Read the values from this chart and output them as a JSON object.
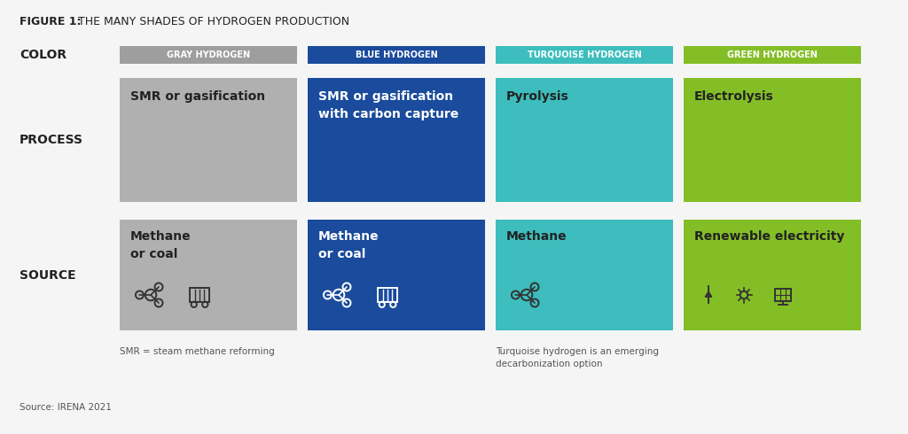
{
  "title_bold": "FIGURE 1:",
  "title_rest": " THE MANY SHADES OF HYDROGEN PRODUCTION",
  "background_color": "#f5f5f5",
  "columns": [
    {
      "label": "GRAY HYDROGEN",
      "label_bg": "#9e9e9e",
      "label_text_color": "#ffffff",
      "box_color": "#b0b0b0",
      "process_text": "SMR or gasification",
      "process_text_color": "#222222",
      "source_text": "Methane\nor coal",
      "source_text_color": "#222222",
      "icons": "methane+coal",
      "icon_color": "#333333"
    },
    {
      "label": "BLUE HYDROGEN",
      "label_bg": "#1a4b9c",
      "label_text_color": "#ffffff",
      "box_color": "#1a4b9c",
      "process_text": "SMR or gasification\nwith carbon capture",
      "process_text_color": "#ffffff",
      "source_text": "Methane\nor coal",
      "source_text_color": "#ffffff",
      "icons": "methane+coal",
      "icon_color": "#ffffff"
    },
    {
      "label": "TURQUOISE HYDROGEN",
      "label_bg": "#3dbdbd",
      "label_text_color": "#ffffff",
      "box_color": "#3dbdbd",
      "process_text": "Pyrolysis",
      "process_text_color": "#222222",
      "source_text": "Methane",
      "source_text_color": "#222222",
      "icons": "methane",
      "icon_color": "#333333"
    },
    {
      "label": "GREEN HYDROGEN",
      "label_bg": "#84be26",
      "label_text_color": "#ffffff",
      "box_color": "#84be26",
      "process_text": "Electrolysis",
      "process_text_color": "#222222",
      "source_text": "Renewable electricity",
      "source_text_color": "#222222",
      "icons": "renewable",
      "icon_color": "#333333"
    }
  ],
  "row_label_color": "#222222",
  "footnote_left": "SMR = steam methane reforming",
  "footnote_right": "Turquoise hydrogen is an emerging\ndecarbonization option",
  "source_note": "Source: IRENA 2021"
}
